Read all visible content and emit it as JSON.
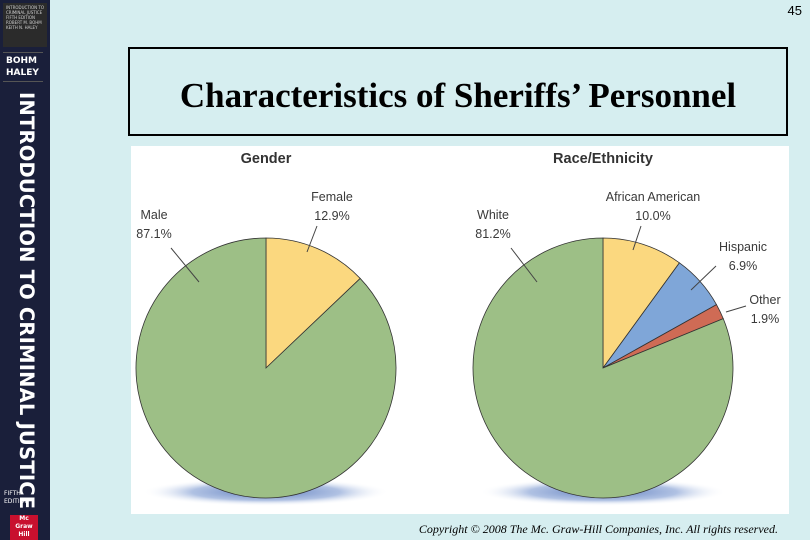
{
  "page_number": "45",
  "title": "Characteristics of Sheriffs’ Personnel",
  "copyright": "Copyright © 2008 The Mc. Graw-Hill Companies, Inc. All rights reserved.",
  "book": {
    "cover_text": "INTRODUCTION TO CRIMINAL JUSTICE FIFTH EDITION ROBERT M. BOHM KEITH N. HALEY",
    "authors": [
      "BOHM",
      "HALEY"
    ],
    "spine_title": "INTRODUCTION TO CRIMINAL JUSTICE",
    "edition": "FIFTH EDITION",
    "publisher": "Mc Graw Hill"
  },
  "chart_data": [
    {
      "type": "pie",
      "title": "Gender",
      "slices": [
        {
          "label": "Female",
          "value": 12.9,
          "value_label": "12.9%",
          "color": "#fbd87f"
        },
        {
          "label": "Male",
          "value": 87.1,
          "value_label": "87.1%",
          "color": "#9dbf86"
        }
      ]
    },
    {
      "type": "pie",
      "title": "Race/Ethnicity",
      "slices": [
        {
          "label": "African American",
          "value": 10.0,
          "value_label": "10.0%",
          "color": "#fbd87f"
        },
        {
          "label": "Hispanic",
          "value": 6.9,
          "value_label": "6.9%",
          "color": "#7fa6d8"
        },
        {
          "label": "Other",
          "value": 1.9,
          "value_label": "1.9%",
          "color": "#cf6b55"
        },
        {
          "label": "White",
          "value": 81.2,
          "value_label": "81.2%",
          "color": "#9dbf86"
        }
      ]
    }
  ]
}
